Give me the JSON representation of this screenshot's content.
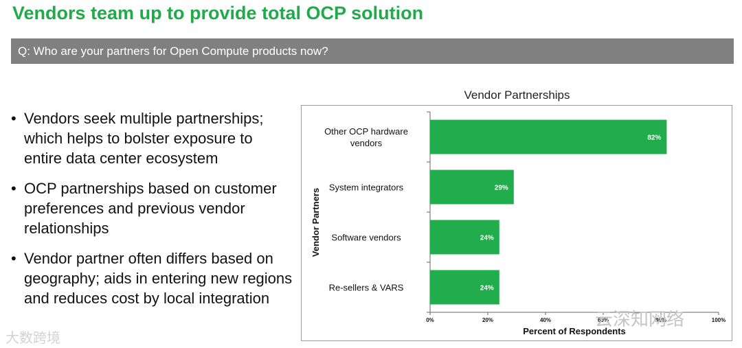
{
  "slide": {
    "title": "Vendors team up to provide total OCP solution",
    "question": "Q: Who are your partners for Open Compute products now?"
  },
  "bullets": [
    "Vendors seek multiple partnerships; which helps to bolster exposure to entire data center ecosystem",
    "OCP partnerships based on customer preferences and previous vendor relationships",
    "Vendor partner often differs based on geography; aids in entering new regions and reduces cost by local integration"
  ],
  "watermarks": {
    "right": "云深知网络",
    "left": "大数跨境"
  },
  "colors": {
    "accent": "#21a94a",
    "bar": "#21ad4b",
    "question_bar": "#808080"
  },
  "chart_data": {
    "type": "bar",
    "orientation": "horizontal",
    "title": "Vendor Partnerships",
    "xlabel": "Percent of Respondents",
    "ylabel": "Vendor Partners",
    "categories": [
      [
        "Other OCP hardware",
        "vendors"
      ],
      [
        "System integrators"
      ],
      [
        "Software vendors"
      ],
      [
        "Re-sellers & VARS"
      ]
    ],
    "values": [
      82,
      29,
      24,
      24
    ],
    "value_labels": [
      "82%",
      "29%",
      "24%",
      "24%"
    ],
    "xlim": [
      0,
      100
    ],
    "xticks": [
      "0%",
      "20%",
      "40%",
      "60%",
      "80%",
      "100%"
    ],
    "grid": false
  }
}
